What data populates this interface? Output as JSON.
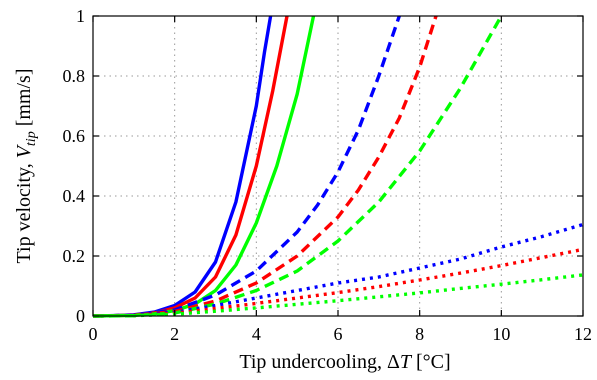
{
  "chart_data": {
    "type": "line",
    "xlabel_parts": {
      "pre": "Tip undercooling, ",
      "delta": "Δ",
      "var": "T",
      "unit": " [°C]"
    },
    "ylabel_parts": {
      "pre": "Tip velocity, ",
      "var": "V",
      "sub": "tip",
      "unit": " [mm/s]"
    },
    "xlim": [
      0,
      12
    ],
    "ylim": [
      0,
      1
    ],
    "xticks": [
      0,
      2,
      4,
      6,
      8,
      10,
      12
    ],
    "yticks": [
      0,
      0.2,
      0.4,
      0.6,
      0.8,
      1
    ],
    "ytick_labels": [
      "0",
      "0.2",
      "0.4",
      "0.6",
      "0.8",
      "1"
    ],
    "grid": true,
    "colors": {
      "blue": "#0000ff",
      "red": "#ff0000",
      "green": "#00ff00"
    },
    "series": [
      {
        "color": "blue",
        "style": "solid",
        "x": [
          0,
          0.5,
          1,
          1.5,
          2,
          2.5,
          3,
          3.5,
          4,
          4.2,
          4.35
        ],
        "y": [
          0,
          0.001,
          0.004,
          0.013,
          0.035,
          0.08,
          0.18,
          0.38,
          0.7,
          0.88,
          1.0
        ]
      },
      {
        "color": "red",
        "style": "solid",
        "x": [
          0,
          0.5,
          1,
          1.5,
          2,
          2.5,
          3,
          3.5,
          4,
          4.4,
          4.75
        ],
        "y": [
          0,
          0.001,
          0.003,
          0.01,
          0.027,
          0.06,
          0.13,
          0.27,
          0.5,
          0.75,
          1.0
        ]
      },
      {
        "color": "green",
        "style": "solid",
        "x": [
          0,
          0.5,
          1,
          1.5,
          2,
          2.5,
          3,
          3.5,
          4,
          4.5,
          5,
          5.4
        ],
        "y": [
          0,
          0.001,
          0.002,
          0.007,
          0.018,
          0.04,
          0.085,
          0.17,
          0.31,
          0.5,
          0.74,
          1.0
        ]
      },
      {
        "color": "blue",
        "style": "dashed",
        "x": [
          0,
          1,
          2,
          3,
          4,
          5,
          5.5,
          6,
          6.5,
          7,
          7.5
        ],
        "y": [
          0,
          0.003,
          0.02,
          0.07,
          0.15,
          0.28,
          0.37,
          0.48,
          0.62,
          0.8,
          1.0
        ]
      },
      {
        "color": "red",
        "style": "dashed",
        "x": [
          0,
          1,
          2,
          3,
          4,
          5,
          6,
          6.5,
          7,
          7.5,
          8,
          8.4
        ],
        "y": [
          0,
          0.002,
          0.015,
          0.05,
          0.11,
          0.2,
          0.33,
          0.42,
          0.53,
          0.66,
          0.83,
          1.0
        ]
      },
      {
        "color": "green",
        "style": "dashed",
        "x": [
          0,
          1,
          2,
          3,
          4,
          5,
          6,
          7,
          8,
          9,
          10
        ],
        "y": [
          0,
          0.001,
          0.01,
          0.04,
          0.085,
          0.15,
          0.25,
          0.38,
          0.55,
          0.76,
          1.0
        ]
      },
      {
        "color": "blue",
        "style": "dotted",
        "x": [
          0,
          1,
          2,
          3,
          4,
          5,
          6,
          7,
          8,
          9,
          10,
          11,
          12
        ],
        "y": [
          0,
          0.002,
          0.012,
          0.035,
          0.06,
          0.085,
          0.11,
          0.13,
          0.16,
          0.19,
          0.23,
          0.265,
          0.305
        ]
      },
      {
        "color": "red",
        "style": "dotted",
        "x": [
          0,
          1,
          2,
          3,
          4,
          5,
          6,
          7,
          8,
          9,
          10,
          11,
          12
        ],
        "y": [
          0,
          0.0015,
          0.009,
          0.025,
          0.042,
          0.06,
          0.078,
          0.098,
          0.12,
          0.143,
          0.168,
          0.195,
          0.222
        ]
      },
      {
        "color": "green",
        "style": "dotted",
        "x": [
          0,
          1,
          2,
          3,
          4,
          5,
          6,
          7,
          8,
          9,
          10,
          11,
          12
        ],
        "y": [
          0,
          0.001,
          0.006,
          0.016,
          0.027,
          0.039,
          0.051,
          0.064,
          0.077,
          0.092,
          0.106,
          0.121,
          0.137
        ]
      }
    ]
  }
}
